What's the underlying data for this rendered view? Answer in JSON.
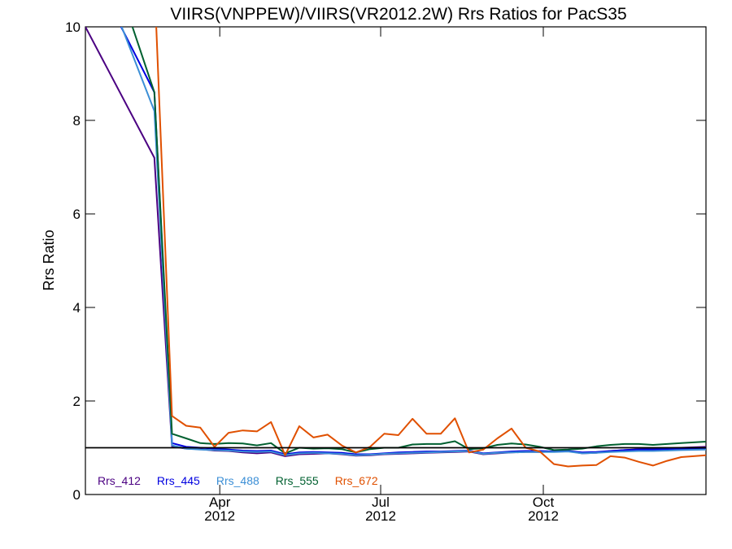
{
  "chart_data": {
    "type": "line",
    "title": "VIIRS(VNPPEW)/VIIRS(VR2012.2W)  Rrs Ratios for PacS35",
    "xlabel": "",
    "ylabel": "Rrs Ratio",
    "xlim": [
      "2012-01-16",
      "2013-01-01"
    ],
    "ylim": [
      0,
      10
    ],
    "yticks": [
      0,
      2,
      4,
      6,
      8,
      10
    ],
    "ytick_labels": [
      "0",
      "2",
      "4",
      "6",
      "8",
      "10"
    ],
    "xticks": [
      {
        "date": "2012-04-01",
        "line1": "Apr",
        "line2": "2012"
      },
      {
        "date": "2012-07-01",
        "line1": "Jul",
        "line2": "2012"
      },
      {
        "date": "2012-10-01",
        "line1": "Oct",
        "line2": "2012"
      }
    ],
    "reference_line": {
      "y": 1,
      "color": "#000000"
    },
    "grid": false,
    "legend_placement": "bottom-left",
    "x": [
      "2012-01-16",
      "2012-02-24",
      "2012-03-05",
      "2012-03-13",
      "2012-03-21",
      "2012-03-29",
      "2012-04-06",
      "2012-04-14",
      "2012-04-22",
      "2012-04-30",
      "2012-05-08",
      "2012-05-16",
      "2012-05-24",
      "2012-06-01",
      "2012-06-09",
      "2012-06-17",
      "2012-06-25",
      "2012-07-03",
      "2012-07-11",
      "2012-07-19",
      "2012-07-27",
      "2012-08-04",
      "2012-08-12",
      "2012-08-20",
      "2012-08-28",
      "2012-09-05",
      "2012-09-13",
      "2012-09-21",
      "2012-09-29",
      "2012-10-07",
      "2012-10-15",
      "2012-10-23",
      "2012-10-31",
      "2012-11-08",
      "2012-11-16",
      "2012-11-24",
      "2012-12-02",
      "2012-12-10",
      "2012-12-18",
      "2013-01-01"
    ],
    "series": [
      {
        "name": "Rrs_412",
        "color": "#4b0082",
        "values": [
          10.0,
          7.2,
          1.03,
          0.98,
          0.97,
          0.94,
          0.93,
          0.9,
          0.88,
          0.9,
          0.82,
          0.86,
          0.87,
          0.88,
          0.86,
          0.83,
          0.84,
          0.86,
          0.87,
          0.88,
          0.89,
          0.9,
          0.91,
          0.92,
          0.86,
          0.88,
          0.9,
          0.91,
          0.91,
          0.92,
          0.93,
          0.88,
          0.89,
          0.93,
          0.95,
          0.97,
          0.98,
          0.99,
          1.0,
          1.02
        ]
      },
      {
        "name": "Rrs_445",
        "color": "#0000e0",
        "values": [
          11.5,
          8.6,
          1.1,
          1.02,
          1.0,
          0.98,
          0.96,
          0.94,
          0.93,
          0.94,
          0.86,
          0.9,
          0.91,
          0.9,
          0.89,
          0.86,
          0.86,
          0.88,
          0.9,
          0.91,
          0.92,
          0.92,
          0.93,
          0.94,
          0.88,
          0.9,
          0.92,
          0.93,
          0.93,
          0.92,
          0.93,
          0.9,
          0.91,
          0.93,
          0.95,
          0.96,
          0.96,
          0.97,
          0.98,
          0.99
        ]
      },
      {
        "name": "Rrs_488",
        "color": "#3c8fd6",
        "values": [
          12.0,
          8.2,
          1.05,
          0.98,
          0.96,
          0.95,
          0.94,
          0.92,
          0.91,
          0.92,
          0.84,
          0.88,
          0.89,
          0.88,
          0.87,
          0.84,
          0.85,
          0.87,
          0.88,
          0.89,
          0.9,
          0.91,
          0.92,
          0.93,
          0.87,
          0.89,
          0.9,
          0.91,
          0.91,
          0.91,
          0.92,
          0.88,
          0.89,
          0.91,
          0.92,
          0.93,
          0.93,
          0.94,
          0.95,
          0.96
        ]
      },
      {
        "name": "Rrs_555",
        "color": "#006030",
        "values": [
          13.0,
          8.6,
          1.3,
          1.2,
          1.1,
          1.08,
          1.1,
          1.09,
          1.05,
          1.1,
          0.88,
          1.0,
          0.98,
          0.99,
          0.97,
          0.9,
          0.97,
          1.0,
          1.0,
          1.07,
          1.08,
          1.08,
          1.14,
          0.97,
          0.99,
          1.06,
          1.09,
          1.07,
          1.02,
          0.95,
          0.96,
          0.98,
          1.03,
          1.06,
          1.08,
          1.08,
          1.06,
          1.08,
          1.1,
          1.13
        ]
      },
      {
        "name": "Rrs_672",
        "color": "#e05000",
        "values": [
          18.0,
          11.0,
          1.68,
          1.47,
          1.43,
          1.02,
          1.32,
          1.37,
          1.35,
          1.55,
          0.84,
          1.46,
          1.22,
          1.28,
          1.05,
          0.9,
          1.02,
          1.3,
          1.27,
          1.62,
          1.3,
          1.3,
          1.63,
          0.9,
          0.96,
          1.2,
          1.41,
          1.0,
          0.92,
          0.65,
          0.6,
          0.62,
          0.63,
          0.82,
          0.79,
          0.7,
          0.62,
          0.72,
          0.8,
          0.84
        ]
      }
    ]
  }
}
